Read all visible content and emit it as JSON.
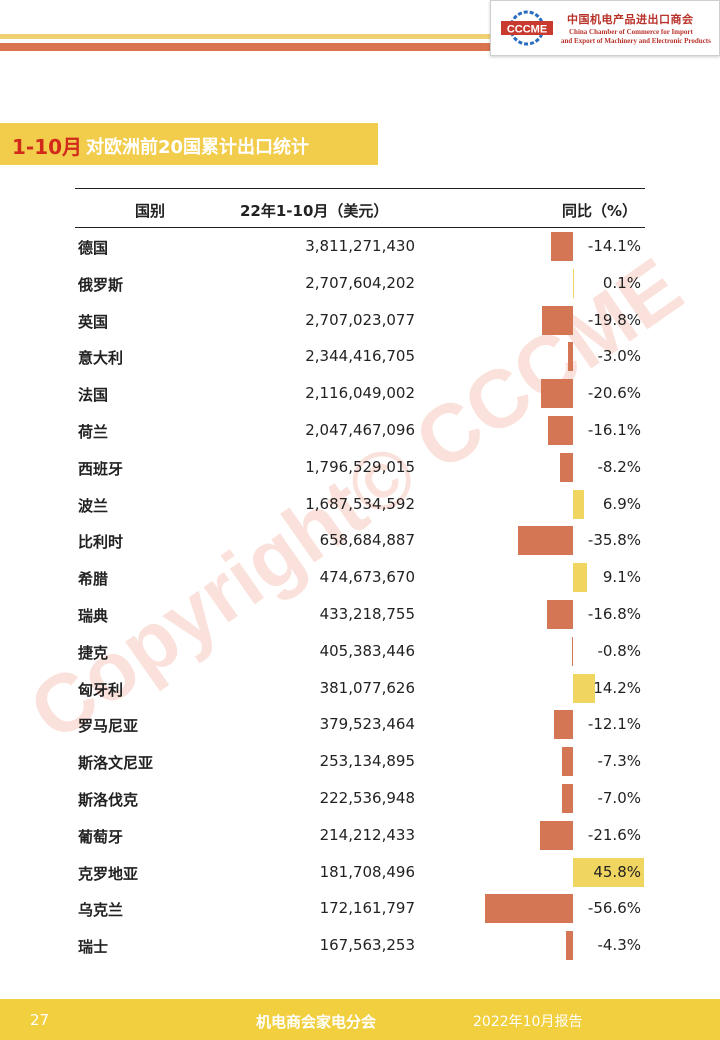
{
  "header": {
    "logo_mark": "CCCME",
    "logo_cn": "中国机电产品进出口商会",
    "logo_en_line1": "China Chamber of Commerce for Import",
    "logo_en_line2": "and Export of Machinery and Electronic Products"
  },
  "title": {
    "accent": "1-10月",
    "text": "对欧洲前20国累计出口统计"
  },
  "table": {
    "columns": [
      "国别",
      "22年1-10月（美元）",
      "同比（%）"
    ],
    "rows": [
      {
        "country": "德国",
        "value": "3,811,271,430",
        "yoy_label": "-14.1%",
        "yoy": -14.1
      },
      {
        "country": "俄罗斯",
        "value": "2,707,604,202",
        "yoy_label": "0.1%",
        "yoy": 0.1
      },
      {
        "country": "英国",
        "value": "2,707,023,077",
        "yoy_label": "-19.8%",
        "yoy": -19.8
      },
      {
        "country": "意大利",
        "value": "2,344,416,705",
        "yoy_label": "-3.0%",
        "yoy": -3.0
      },
      {
        "country": "法国",
        "value": "2,116,049,002",
        "yoy_label": "-20.6%",
        "yoy": -20.6
      },
      {
        "country": "荷兰",
        "value": "2,047,467,096",
        "yoy_label": "-16.1%",
        "yoy": -16.1
      },
      {
        "country": "西班牙",
        "value": "1,796,529,015",
        "yoy_label": "-8.2%",
        "yoy": -8.2
      },
      {
        "country": "波兰",
        "value": "1,687,534,592",
        "yoy_label": "6.9%",
        "yoy": 6.9
      },
      {
        "country": "比利时",
        "value": "658,684,887",
        "yoy_label": "-35.8%",
        "yoy": -35.8
      },
      {
        "country": "希腊",
        "value": "474,673,670",
        "yoy_label": "9.1%",
        "yoy": 9.1
      },
      {
        "country": "瑞典",
        "value": "433,218,755",
        "yoy_label": "-16.8%",
        "yoy": -16.8
      },
      {
        "country": "捷克",
        "value": "405,383,446",
        "yoy_label": "-0.8%",
        "yoy": -0.8
      },
      {
        "country": "匈牙利",
        "value": "381,077,626",
        "yoy_label": "14.2%",
        "yoy": 14.2
      },
      {
        "country": "罗马尼亚",
        "value": "379,523,464",
        "yoy_label": "-12.1%",
        "yoy": -12.1
      },
      {
        "country": "斯洛文尼亚",
        "value": "253,134,895",
        "yoy_label": "-7.3%",
        "yoy": -7.3
      },
      {
        "country": "斯洛伐克",
        "value": "222,536,948",
        "yoy_label": "-7.0%",
        "yoy": -7.0
      },
      {
        "country": "葡萄牙",
        "value": "214,212,433",
        "yoy_label": "-21.6%",
        "yoy": -21.6
      },
      {
        "country": "克罗地亚",
        "value": "181,708,496",
        "yoy_label": "45.8%",
        "yoy": 45.8
      },
      {
        "country": "乌克兰",
        "value": "172,161,797",
        "yoy_label": "-56.6%",
        "yoy": -56.6
      },
      {
        "country": "瑞士",
        "value": "167,563,253",
        "yoy_label": "-4.3%",
        "yoy": -4.3
      }
    ]
  },
  "watermark": "Copyright© CCCME",
  "footer": {
    "page": "27",
    "org": "机电商会家电分会",
    "report": "2022年10月报告"
  },
  "colors": {
    "negative_bar": "#d47553",
    "positive_bar": "#f1d561",
    "banner": "#f2cd4c",
    "title_accent": "#d12a1b"
  }
}
